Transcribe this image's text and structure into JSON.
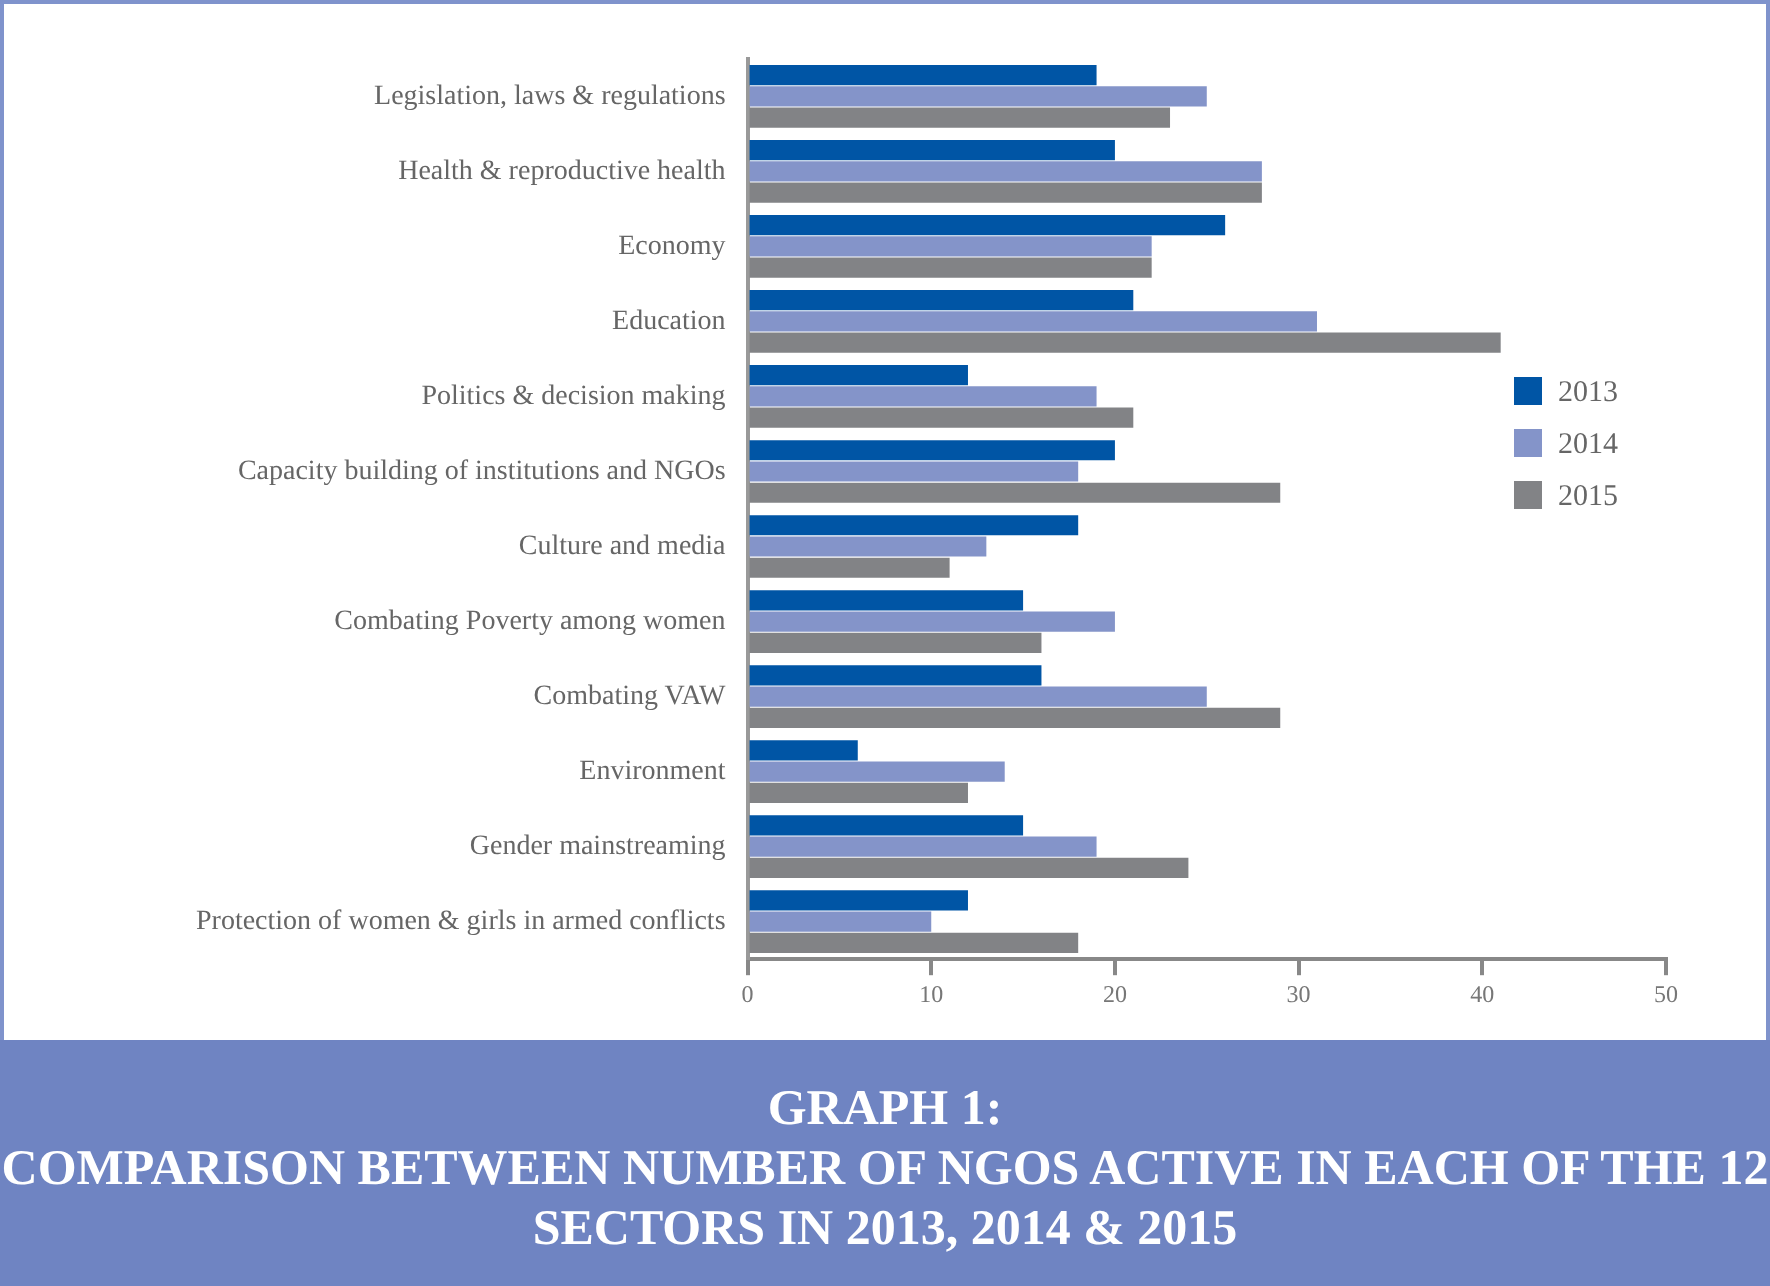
{
  "chart_data": {
    "type": "bar",
    "orientation": "horizontal",
    "title": "GRAPH 1:",
    "subtitle": "COMPARISON BETWEEN NUMBER OF NGOS ACTIVE IN EACH OF THE 12 SECTORS IN 2013, 2014 & 2015",
    "categories": [
      "Legislation, laws & regulations",
      "Health & reproductive health",
      "Economy",
      "Education",
      "Politics & decision making",
      "Capacity building of institutions and NGOs",
      "Culture and media",
      "Combating Poverty among women",
      "Combating VAW",
      "Environment",
      "Gender mainstreaming",
      "Protection of women & girls in armed conflicts"
    ],
    "series": [
      {
        "name": "2013",
        "color": "#0055a5",
        "values": [
          19,
          20,
          26,
          21,
          12,
          20,
          18,
          15,
          16,
          6,
          15,
          12
        ]
      },
      {
        "name": "2014",
        "color": "#8494c9",
        "values": [
          25,
          28,
          22,
          31,
          19,
          18,
          13,
          20,
          25,
          14,
          19,
          10
        ]
      },
      {
        "name": "2015",
        "color": "#828386",
        "values": [
          23,
          28,
          22,
          41,
          21,
          29,
          11,
          16,
          29,
          12,
          24,
          18
        ]
      }
    ],
    "xlim": [
      0,
      50
    ],
    "xticks": [
      0,
      10,
      20,
      30,
      40,
      50
    ],
    "grid": false,
    "legend": "right"
  }
}
